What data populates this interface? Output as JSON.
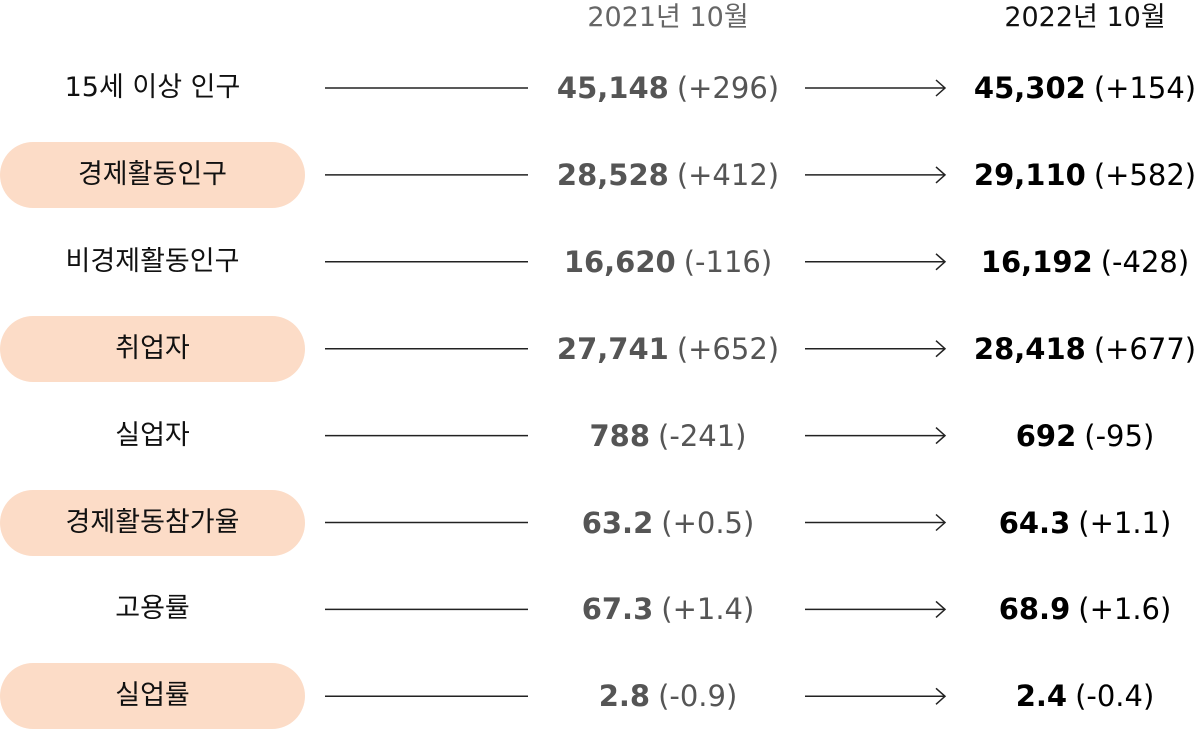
{
  "header": {
    "before": "2021년 10월",
    "after": "2022년 10월"
  },
  "rows": [
    {
      "label": "15세 이상 인구",
      "before": {
        "value": "45,148",
        "change": "(+296)"
      },
      "after": {
        "value": "45,302",
        "change": "(+154)"
      }
    },
    {
      "label": "경제활동인구",
      "before": {
        "value": "28,528",
        "change": "(+412)"
      },
      "after": {
        "value": "29,110",
        "change": "(+582)"
      }
    },
    {
      "label": "비경제활동인구",
      "before": {
        "value": "16,620",
        "change": "(-116)"
      },
      "after": {
        "value": "16,192",
        "change": "(-428)"
      }
    },
    {
      "label": "취업자",
      "before": {
        "value": "27,741",
        "change": "(+652)"
      },
      "after": {
        "value": "28,418",
        "change": "(+677)"
      }
    },
    {
      "label": "실업자",
      "before": {
        "value": "788",
        "change": "(-241)"
      },
      "after": {
        "value": "692",
        "change": "(-95)"
      }
    },
    {
      "label": "경제활동참가율",
      "before": {
        "value": "63.2",
        "change": "(+0.5)"
      },
      "after": {
        "value": "64.3",
        "change": "(+1.1)"
      }
    },
    {
      "label": "고용률",
      "before": {
        "value": "67.3",
        "change": "(+1.4)"
      },
      "after": {
        "value": "68.9",
        "change": "(+1.6)"
      }
    },
    {
      "label": "실업률",
      "before": {
        "value": "2.8",
        "change": "(-0.9)"
      },
      "after": {
        "value": "2.4",
        "change": "(-0.4)"
      }
    }
  ]
}
